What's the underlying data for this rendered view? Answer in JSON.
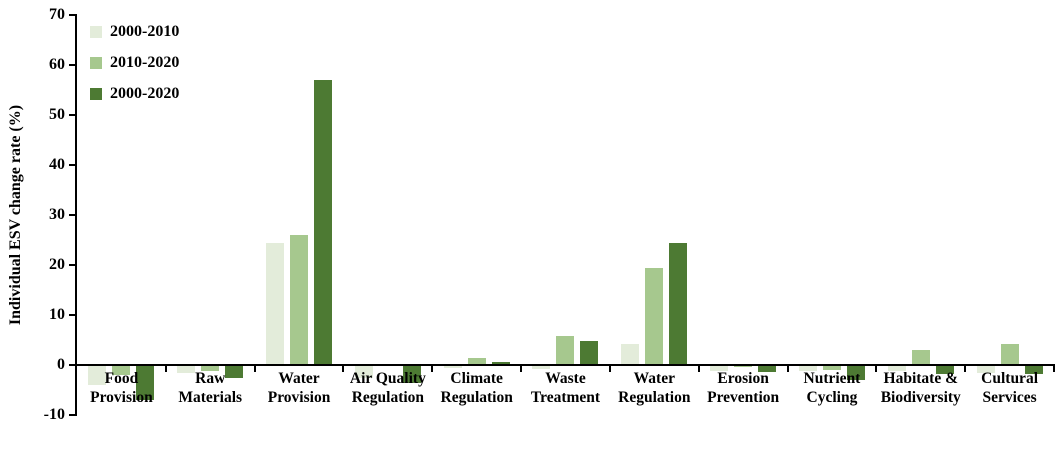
{
  "chart_data": {
    "type": "bar",
    "title": "",
    "xlabel": "",
    "ylabel": "Individual ESV change rate (%)",
    "ylim": [
      -10,
      70
    ],
    "yticks": [
      70,
      60,
      50,
      40,
      30,
      20,
      10,
      0,
      -10
    ],
    "grid": false,
    "legend_position": "top-left",
    "categories": [
      [
        "Food",
        "Provision"
      ],
      [
        "Raw",
        "Materials"
      ],
      [
        "Water",
        "Provision"
      ],
      [
        "Air Quality",
        "Regulation"
      ],
      [
        "Climate",
        "Regulation"
      ],
      [
        "Waste",
        "Treatment"
      ],
      [
        "Water",
        "Regulation"
      ],
      [
        "Erosion",
        "Prevention"
      ],
      [
        "Nutrient",
        "Cycling"
      ],
      [
        "Habitate &",
        "Biodiversity"
      ],
      [
        "Cultural",
        "Services"
      ]
    ],
    "series": [
      {
        "name": "2000-2010",
        "color": "#e3ecda",
        "values": [
          -4.0,
          -1.5,
          24.5,
          -2.5,
          -0.5,
          -0.8,
          4.2,
          -1.2,
          -1.2,
          -1.2,
          -1.5
        ]
      },
      {
        "name": "2010-2020",
        "color": "#a6c88e",
        "values": [
          -2.0,
          -1.2,
          26.0,
          0,
          1.5,
          5.9,
          19.4,
          -0.3,
          -1.0,
          3.0,
          4.2
        ]
      },
      {
        "name": "2000-2020",
        "color": "#4d7a33",
        "values": [
          -7.0,
          -2.5,
          57.0,
          -3.5,
          0.6,
          4.9,
          24.5,
          -1.4,
          -3.0,
          -1.8,
          -1.8
        ]
      }
    ],
    "axis_color": "#000000"
  }
}
